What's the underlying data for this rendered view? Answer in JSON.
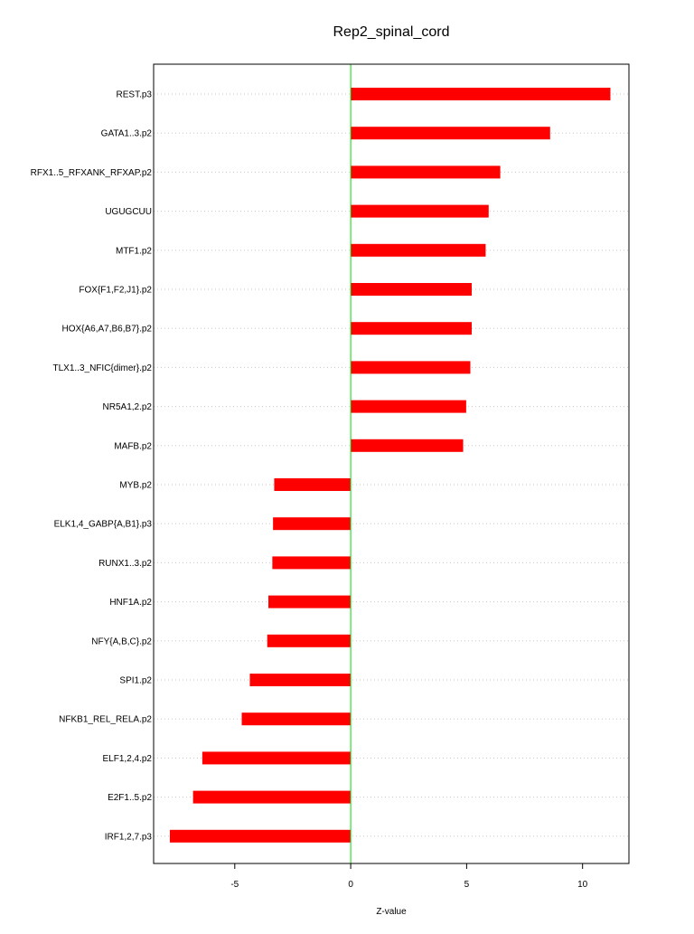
{
  "chart_data": {
    "type": "bar",
    "orientation": "horizontal",
    "title": "Rep2_spinal_cord",
    "xlabel": "Z-value",
    "ylabel": "",
    "xlim": [
      -8.5,
      12
    ],
    "xticks": [
      -5,
      0,
      5,
      10
    ],
    "grid": true,
    "categories": [
      "REST.p3",
      "GATA1..3.p2",
      "RFX1..5_RFXANK_RFXAP.p2",
      "UGUGCUU",
      "MTF1.p2",
      "FOX{F1,F2,J1}.p2",
      "HOX{A6,A7,B6,B7}.p2",
      "TLX1..3_NFIC{dimer}.p2",
      "NR5A1,2.p2",
      "MAFB.p2",
      "MYB.p2",
      "ELK1,4_GABP{A,B1}.p3",
      "RUNX1..3.p2",
      "HNF1A.p2",
      "NFY{A,B,C}.p2",
      "SPI1.p2",
      "NFKB1_REL_RELA.p2",
      "ELF1,2,4.p2",
      "E2F1..5.p2",
      "IRF1,2,7.p3"
    ],
    "values": [
      11.2,
      8.6,
      6.45,
      5.95,
      5.82,
      5.22,
      5.22,
      5.16,
      4.98,
      4.85,
      -3.3,
      -3.35,
      -3.38,
      -3.55,
      -3.6,
      -4.35,
      -4.7,
      -6.4,
      -6.8,
      -7.8
    ],
    "colors": {
      "bar": "#ff0000",
      "zero_line": "#00dd00",
      "grid": "#c8c8c8",
      "axis": "#000000"
    }
  }
}
